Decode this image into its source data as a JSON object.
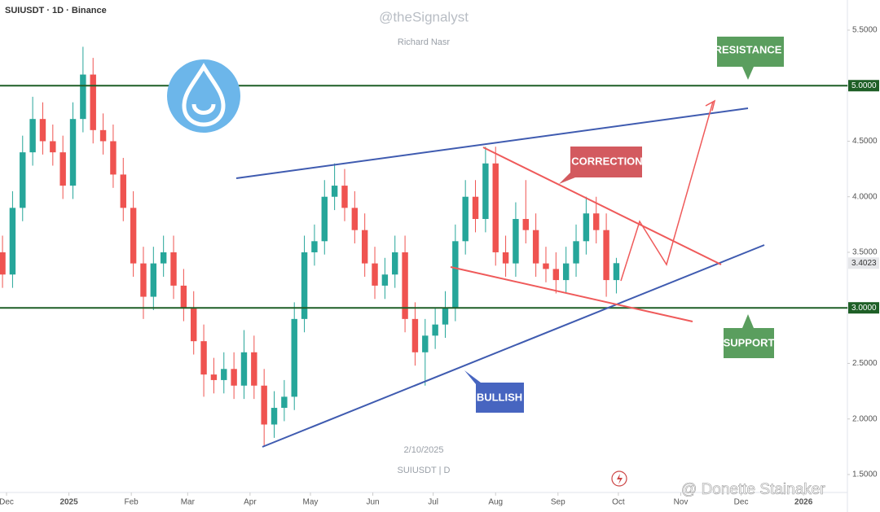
{
  "chart_data": {
    "type": "candlestick",
    "title": "SUIUSDT · 1D · Binance",
    "watermark": "@theSignalyst",
    "author": "Richard Nasr",
    "date_note": "2/10/2025",
    "symbol_note": "SUIUSDT | D",
    "credit": "@ Donette Stainaker",
    "annotations": {
      "resistance": "RESISTANCE",
      "correction": "CORRECTION",
      "bullish": "BULLISH",
      "support": "SUPPORT"
    },
    "up_color": "#26a69a",
    "down_color": "#ef5350",
    "level_color": "#1e5f26",
    "grid": false,
    "xlim": [
      -3.24,
      417.8
    ],
    "ylim": [
      1.375,
      5.771
    ],
    "xticks": [
      {
        "value": 0,
        "label": "Dec"
      },
      {
        "value": 31,
        "label": "2025"
      },
      {
        "value": 62,
        "label": "Feb"
      },
      {
        "value": 90,
        "label": "Mar"
      },
      {
        "value": 121,
        "label": "Apr"
      },
      {
        "value": 151,
        "label": "May"
      },
      {
        "value": 182,
        "label": "Jun"
      },
      {
        "value": 212,
        "label": "Jul"
      },
      {
        "value": 243,
        "label": "Aug"
      },
      {
        "value": 274,
        "label": "Sep"
      },
      {
        "value": 304,
        "label": "Oct"
      },
      {
        "value": 335,
        "label": "Nov"
      },
      {
        "value": 365,
        "label": "Dec"
      },
      {
        "value": 396,
        "label": "2026"
      }
    ],
    "yticks": [
      {
        "value": 1.5,
        "label": "1.5000"
      },
      {
        "value": 2,
        "label": "2.0000"
      },
      {
        "value": 2.5,
        "label": "2.5000"
      },
      {
        "value": 3,
        "label": "3.0000"
      },
      {
        "value": 3.5,
        "label": "3.5000"
      },
      {
        "value": 4,
        "label": "4.0000"
      },
      {
        "value": 4.5,
        "label": "4.5000"
      },
      {
        "value": 5,
        "label": "5.0000"
      },
      {
        "value": 5.5,
        "label": "5.5000"
      }
    ],
    "levels": [
      {
        "value": 5,
        "label": "5.0000"
      },
      {
        "value": 3,
        "label": "3.0000"
      }
    ],
    "last_price": 3.4023,
    "x": [
      -2,
      3,
      8,
      13,
      18,
      23,
      28,
      33,
      38,
      43,
      48,
      53,
      58,
      63,
      68,
      73,
      78,
      83,
      88,
      93,
      98,
      103,
      108,
      113,
      118,
      123,
      128,
      133,
      138,
      143,
      148,
      153,
      158,
      163,
      168,
      173,
      178,
      183,
      188,
      193,
      198,
      203,
      208,
      213,
      218,
      223,
      228,
      233,
      238,
      243,
      248,
      253,
      258,
      263,
      268,
      273,
      278,
      283,
      288,
      293,
      298,
      303
    ],
    "open": [
      3.5,
      3.3,
      3.9,
      4.4,
      4.7,
      4.5,
      4.4,
      4.1,
      4.7,
      5.1,
      4.6,
      4.5,
      4.2,
      3.9,
      3.4,
      3.1,
      3.4,
      3.5,
      3.2,
      3.0,
      2.7,
      2.4,
      2.35,
      2.45,
      2.3,
      2.6,
      2.3,
      1.95,
      2.1,
      2.2,
      2.9,
      3.5,
      3.6,
      4.0,
      4.1,
      3.9,
      3.7,
      3.4,
      3.2,
      3.3,
      3.5,
      2.9,
      2.6,
      2.75,
      2.85,
      3.0,
      3.6,
      4.0,
      3.8,
      4.3,
      3.5,
      3.4,
      3.8,
      3.7,
      3.4,
      3.35,
      3.25,
      3.4,
      3.6,
      3.85,
      3.7,
      3.25
    ],
    "high": [
      3.65,
      4.05,
      4.55,
      4.9,
      4.85,
      4.65,
      4.55,
      4.85,
      5.35,
      5.25,
      4.75,
      4.65,
      4.35,
      4.05,
      3.55,
      3.55,
      3.65,
      3.65,
      3.35,
      3.15,
      2.85,
      2.55,
      2.6,
      2.6,
      2.8,
      2.75,
      2.45,
      2.25,
      2.35,
      3.05,
      3.65,
      3.75,
      4.15,
      4.3,
      4.25,
      4.05,
      3.85,
      3.55,
      3.45,
      3.65,
      3.65,
      3.05,
      2.9,
      3.0,
      3.15,
      3.75,
      4.15,
      4.15,
      4.45,
      4.45,
      3.65,
      3.95,
      4.15,
      3.85,
      3.55,
      3.5,
      3.55,
      3.75,
      4.0,
      4.0,
      3.85,
      3.45
    ],
    "low": [
      3.18,
      3.18,
      3.78,
      4.28,
      4.38,
      4.28,
      3.98,
      3.98,
      4.58,
      4.48,
      4.38,
      4.08,
      3.78,
      3.28,
      2.9,
      2.98,
      3.28,
      3.08,
      2.88,
      2.58,
      2.2,
      2.23,
      2.23,
      2.18,
      2.18,
      2.18,
      1.75,
      1.83,
      1.98,
      2.08,
      2.78,
      3.38,
      3.48,
      3.88,
      3.78,
      3.58,
      3.28,
      3.08,
      3.08,
      3.18,
      2.78,
      2.48,
      2.3,
      2.63,
      2.73,
      2.88,
      3.48,
      3.68,
      3.68,
      3.38,
      3.28,
      3.28,
      3.58,
      3.28,
      3.23,
      3.13,
      3.13,
      3.28,
      3.48,
      3.58,
      3.1,
      3.13
    ],
    "close": [
      3.3,
      3.9,
      4.4,
      4.7,
      4.5,
      4.4,
      4.1,
      4.7,
      5.1,
      4.6,
      4.5,
      4.2,
      3.9,
      3.4,
      3.1,
      3.4,
      3.5,
      3.2,
      3.0,
      2.7,
      2.4,
      2.35,
      2.45,
      2.3,
      2.6,
      2.3,
      1.95,
      2.1,
      2.2,
      2.9,
      3.5,
      3.6,
      4.0,
      4.1,
      3.9,
      3.7,
      3.4,
      3.2,
      3.3,
      3.5,
      2.9,
      2.6,
      2.75,
      2.85,
      3.0,
      3.6,
      4.0,
      3.8,
      4.3,
      3.5,
      3.4,
      3.8,
      3.7,
      3.4,
      3.35,
      3.25,
      3.4,
      3.6,
      3.85,
      3.7,
      3.25,
      3.4023
    ]
  }
}
